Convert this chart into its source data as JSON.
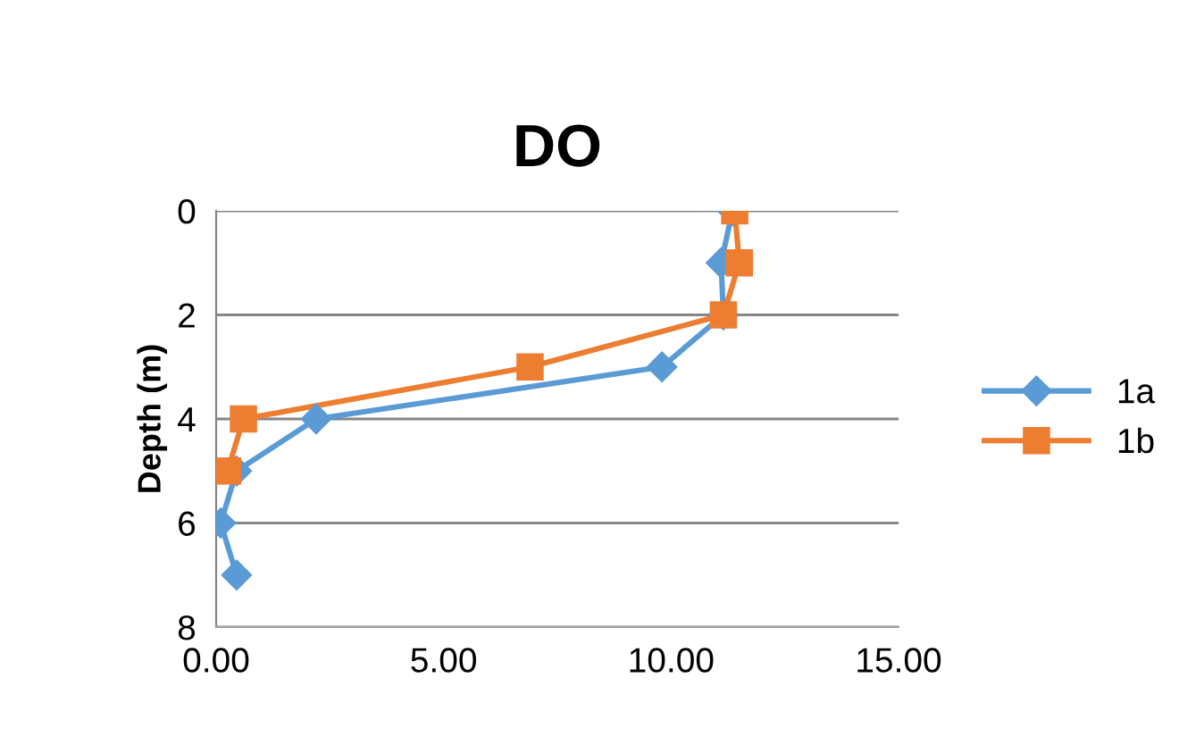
{
  "chart_data": {
    "type": "line",
    "title": "DO",
    "ylabel": "Depth (m)",
    "series": [
      {
        "name": "1a",
        "color": "#5b9bd5",
        "marker": "diamond",
        "x": [
          11.35,
          11.1,
          11.15,
          9.8,
          2.2,
          0.45,
          0.1,
          0.45
        ],
        "values": [
          0,
          1,
          2,
          3,
          4,
          5,
          6,
          7
        ]
      },
      {
        "name": "1b",
        "color": "#ed7d31",
        "marker": "square",
        "x": [
          11.4,
          11.5,
          11.15,
          6.9,
          0.6,
          0.25
        ],
        "values": [
          0,
          1,
          2,
          3,
          4,
          5
        ]
      }
    ],
    "xlim": [
      0,
      15
    ],
    "xticks": [
      {
        "value": 0,
        "label": "0.00"
      },
      {
        "value": 5,
        "label": "5.00"
      },
      {
        "value": 10,
        "label": "10.00"
      },
      {
        "value": 15,
        "label": "15.00"
      }
    ],
    "ylim": [
      8,
      0
    ],
    "yticks": [
      0,
      2,
      4,
      6,
      8
    ],
    "grid": "y",
    "legend": "right",
    "line_style": "solid"
  }
}
